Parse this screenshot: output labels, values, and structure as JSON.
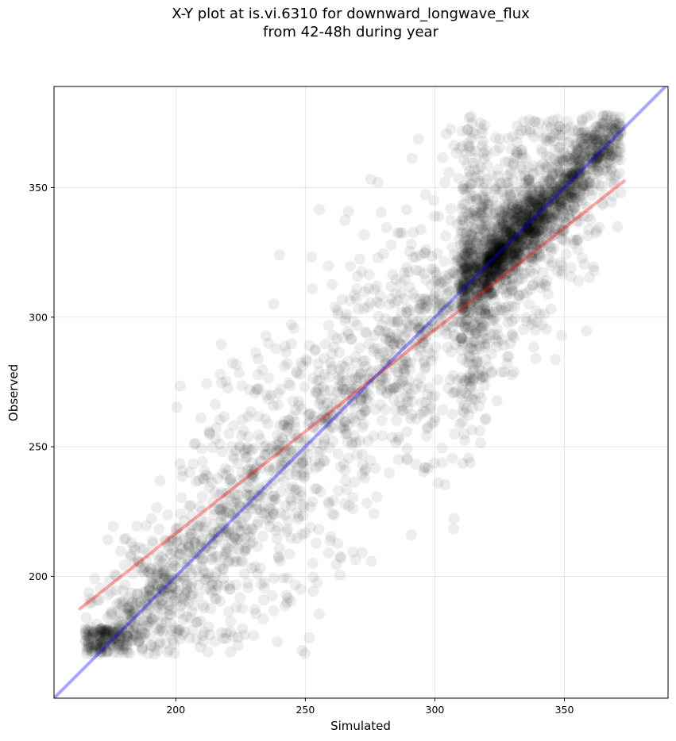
{
  "chart_data": {
    "type": "scatter",
    "title": "X-Y plot at is.vi.6310 for downward_longwave_flux",
    "subtitle": "from 42-48h during year",
    "xlabel": "Simulated",
    "ylabel": "Observed",
    "xlim": [
      153,
      390
    ],
    "ylim": [
      153,
      389
    ],
    "xticks": [
      200,
      250,
      300,
      350
    ],
    "yticks": [
      200,
      250,
      300,
      350
    ],
    "grid": true,
    "point_color": "#000000",
    "point_opacity": 0.07,
    "approx_point_count": 4000,
    "series": [
      {
        "kind": "cloud-core",
        "points": [
          [
            170,
            175
          ],
          [
            175,
            178
          ],
          [
            180,
            182
          ],
          [
            185,
            186
          ],
          [
            190,
            188
          ],
          [
            195,
            193
          ],
          [
            200,
            198
          ],
          [
            205,
            203
          ],
          [
            210,
            208
          ],
          [
            215,
            213
          ],
          [
            220,
            218
          ],
          [
            225,
            222
          ],
          [
            230,
            228
          ],
          [
            235,
            233
          ],
          [
            240,
            238
          ],
          [
            245,
            243
          ],
          [
            250,
            248
          ],
          [
            255,
            253
          ],
          [
            260,
            258
          ],
          [
            265,
            263
          ],
          [
            270,
            268
          ],
          [
            275,
            273
          ],
          [
            280,
            278
          ],
          [
            285,
            283
          ],
          [
            290,
            288
          ],
          [
            295,
            293
          ],
          [
            300,
            298
          ],
          [
            305,
            303
          ],
          [
            310,
            308
          ],
          [
            315,
            313
          ],
          [
            320,
            318
          ],
          [
            325,
            323
          ],
          [
            330,
            328
          ],
          [
            335,
            333
          ],
          [
            340,
            338
          ],
          [
            345,
            343
          ],
          [
            350,
            348
          ],
          [
            355,
            353
          ],
          [
            360,
            358
          ],
          [
            365,
            363
          ],
          [
            370,
            365
          ]
        ]
      }
    ],
    "lines": [
      {
        "name": "",
        "color": "#ff0000",
        "opacity": 0.35,
        "x": [
          163,
          373
        ],
        "y": [
          187.5,
          352.5
        ]
      },
      {
        "name": "",
        "color": "#0000ff",
        "opacity": 0.35,
        "x": [
          153,
          390
        ],
        "y": [
          153,
          390
        ]
      }
    ]
  }
}
